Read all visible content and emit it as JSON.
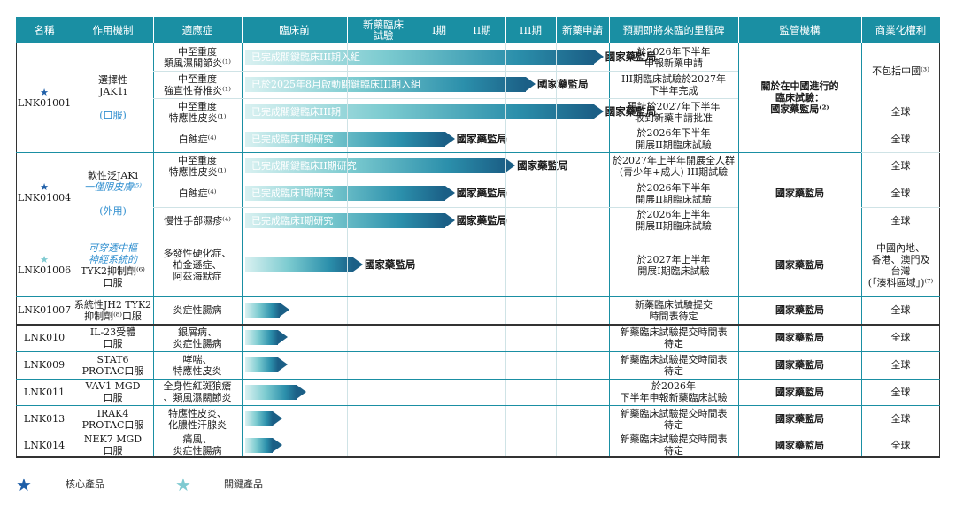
{
  "header": [
    "名稱",
    "作用機制",
    "適應症",
    "臨床前",
    "新藥臨床\n試驗",
    "I期",
    "II期",
    "III期",
    "新藥申請",
    "預期即將來臨的里程碑",
    "監管機構",
    "商業化權利"
  ],
  "programs": [
    {
      "code": "LNK01001",
      "star": "core",
      "mechanism": "選擇性\nJAK1i",
      "mechanism_note": "(口服)",
      "indications": [
        {
          "name": "中至重度\n類風濕關節炎⁽¹⁾",
          "bar_text": "已完成關鍵臨床III期入組",
          "progress": 0.985,
          "regulator": "國家藥監局",
          "milestone": "於2026年下半年\n申報新藥申請",
          "rights": "不包括中國⁽³⁾"
        },
        {
          "name": "中至重度\n強直性脊椎炎⁽¹⁾",
          "bar_text": "已於2025年8月啟動關鍵臨床III期入組",
          "progress": 0.8,
          "regulator": "國家藥監局",
          "milestone": "III期臨床試驗於2027年\n下半年完成",
          "rights": ""
        },
        {
          "name": "中至重度\n特應性皮炎⁽¹⁾",
          "bar_text": "已完成關鍵臨床III期",
          "progress": 0.985,
          "regulator": "國家藥監局",
          "milestone": "預計於2027年下半年\n收到新藥申請批准",
          "rights": "全球"
        },
        {
          "name": "白蝕症⁽⁴⁾",
          "bar_text": "已完成臨床I期研究",
          "progress": 0.58,
          "regulator": "國家藥監局",
          "milestone": "於2026年下半年\n開展II期臨床試驗",
          "rights": "全球"
        }
      ],
      "regulator_cell": "關於在中國進行的\n臨床試驗：\n國家藥監局⁽²⁾"
    },
    {
      "code": "LNK01004",
      "star": "core",
      "mechanism": "軟性泛JAKi",
      "mechanism_blue": "一僅限皮膚⁽⁵⁾",
      "mechanism_note": "(外用)",
      "indications": [
        {
          "name": "中至重度\n特應性皮炎⁽¹⁾",
          "bar_text": "已完成關鍵臨床II期研究",
          "progress": 0.745,
          "regulator": "國家藥監局",
          "milestone": "於2027年上半年開展全人群\n(青少年+成人) III期試驗",
          "rights": "全球"
        },
        {
          "name": "白蝕症⁽⁴⁾",
          "bar_text": "已完成臨床I期研究",
          "progress": 0.58,
          "regulator": "國家藥監局",
          "milestone": "於2026年下半年\n開展II期臨床試驗",
          "rights": "全球"
        },
        {
          "name": "慢性手部濕疹⁽⁴⁾",
          "bar_text": "已完成臨床I期研究",
          "progress": 0.58,
          "regulator": "國家藥監局",
          "milestone": "於2026年上半年\n開展II期臨床試驗",
          "rights": "全球"
        }
      ],
      "regulator_cell": "國家藥監局"
    },
    {
      "code": "LNK01006",
      "star": "key",
      "mechanism_blue": "可穿透中樞\n神經系統的",
      "mechanism": "TYK2抑制劑⁽⁶⁾\n口服",
      "indications": [
        {
          "name": "多發性硬化症、\n柏金遜症、\n阿茲海默症",
          "bar_text": "",
          "progress": 0.33,
          "regulator": "國家藥監局",
          "milestone": "於2027年上半年\n開展I期臨床試驗",
          "rights": "中國內地、\n香港、澳門及\n台灣\n(「湊科區域」)⁽⁷⁾"
        }
      ],
      "regulator_cell": "國家藥監局"
    },
    {
      "code": "LNK01007",
      "star": "",
      "mechanism": "系統性JH2 TYK2\n抑制劑⁽⁸⁾口服",
      "indications": [
        {
          "name": "炎症性腸病",
          "bar_text": "",
          "progress": 0.13,
          "regulator": "",
          "milestone": "新藥臨床試驗提交\n時間表待定",
          "rights": "全球"
        }
      ],
      "regulator_cell": "國家藥監局"
    },
    {
      "code": "LNK010",
      "star": "",
      "mechanism": "IL-23受體\n口服",
      "indications": [
        {
          "name": "銀屑病、\n炎症性腸病",
          "bar_text": "",
          "progress": 0.125,
          "regulator": "",
          "milestone": "新藥臨床試驗提交時間表\n待定",
          "rights": "全球"
        }
      ],
      "regulator_cell": "國家藥監局"
    },
    {
      "code": "LNK009",
      "star": "",
      "mechanism": "STAT6\nPROTAC口服",
      "indications": [
        {
          "name": "哮喘、\n特應性皮炎",
          "bar_text": "",
          "progress": 0.125,
          "regulator": "",
          "milestone": "新藥臨床試驗提交時間表\n待定",
          "rights": "全球"
        }
      ],
      "regulator_cell": "國家藥監局"
    },
    {
      "code": "LNK011",
      "star": "",
      "mechanism": "VAV1 MGD\n口服",
      "indications": [
        {
          "name": "全身性紅斑狼瘡\n、類風濕關節炎",
          "bar_text": "",
          "progress": 0.175,
          "regulator": "",
          "milestone": "於2026年\n下半年申報新藥臨床試驗",
          "rights": "全球"
        }
      ],
      "regulator_cell": "國家藥監局"
    },
    {
      "code": "LNK013",
      "star": "",
      "mechanism": "IRAK4\nPROTAC口服",
      "indications": [
        {
          "name": "特應性皮炎、\n化膿性汗腺炎",
          "bar_text": "",
          "progress": 0.11,
          "regulator": "",
          "milestone": "新藥臨床試驗提交時間表\n待定",
          "rights": "全球"
        }
      ],
      "regulator_cell": "國家藥監局"
    },
    {
      "code": "LNK014",
      "star": "",
      "mechanism": "NEK7 MGD\n口服",
      "indications": [
        {
          "name": "痛風、\n炎症性腸病",
          "bar_text": "",
          "progress": 0.11,
          "regulator": "",
          "milestone": "新藥臨床試驗提交時間表\n待定",
          "rights": "全球"
        }
      ],
      "regulator_cell": "國家藥監局"
    }
  ],
  "legend": {
    "core_label": "核心產品",
    "key_label": "關鍵產品"
  },
  "colors": {
    "header_bg": "#1a8fa3",
    "grid": "#1a8fa3",
    "core_star": "#1f5fa8",
    "key_star": "#7fcad1",
    "blue_text": "#2e8ecf"
  },
  "icons": {
    "core": "star-icon",
    "key": "star-icon"
  }
}
